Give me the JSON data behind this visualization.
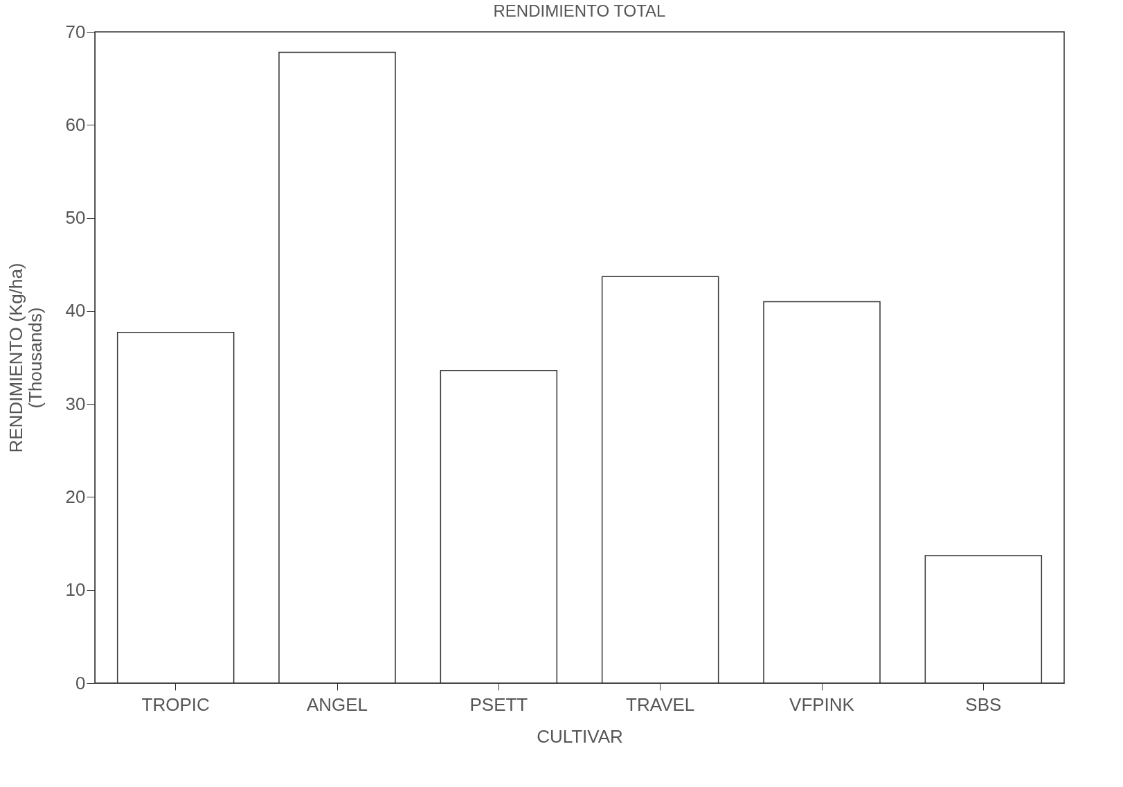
{
  "chart_data": {
    "type": "bar",
    "title": "RENDIMIENTO TOTAL",
    "xlabel": "CULTIVAR",
    "ylabel": "RENDIMIENTO (Kg/ha)\n(Thousands)",
    "categories": [
      "TROPIC",
      "ANGEL",
      "PSETT",
      "TRAVEL",
      "VFPINK",
      "SBS"
    ],
    "values": [
      37.7,
      67.8,
      33.6,
      43.7,
      41.0,
      13.7
    ],
    "color": "#ffffff",
    "ylim": [
      0,
      70
    ],
    "yticks": [
      0,
      10,
      20,
      30,
      40,
      50,
      60,
      70
    ],
    "grid": false
  }
}
